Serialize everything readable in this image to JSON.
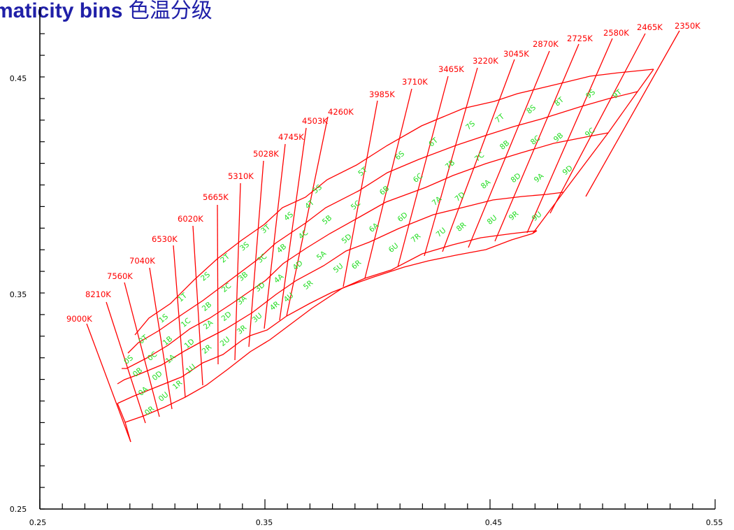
{
  "title": {
    "main": "maticity bins",
    "cjk": "色温分级"
  },
  "colors": {
    "grid": "#ff0000",
    "cct": "#ff0000",
    "bins": "#22dd22",
    "title": "#2020a8",
    "axis": "#000000"
  },
  "axes": {
    "x_ticks": [
      "0.25",
      "0.35",
      "0.45",
      "0.55"
    ],
    "y_ticks": [
      "0.45",
      "0.35",
      "0.25"
    ]
  },
  "cct_labels": [
    "9000K",
    "8210K",
    "7560K",
    "7040K",
    "6530K",
    "6020K",
    "5665K",
    "5310K",
    "5028K",
    "4745K",
    "4503K",
    "4260K",
    "3985K",
    "3710K",
    "3465K",
    "3220K",
    "3045K",
    "2870K",
    "2725K",
    "2580K",
    "2465K",
    "2350K"
  ],
  "bin_labels": [
    "0S",
    "0T",
    "0B",
    "0C",
    "0A",
    "0D",
    "0R",
    "0U",
    "1S",
    "1T",
    "1B",
    "1C",
    "1A",
    "1D",
    "1R",
    "1U",
    "2S",
    "2T",
    "2B",
    "2C",
    "2A",
    "2D",
    "2R",
    "2U",
    "3S",
    "3T",
    "3B",
    "3C",
    "3A",
    "3D",
    "3R",
    "3U",
    "4S",
    "4T",
    "4B",
    "4C",
    "4A",
    "4D",
    "4R",
    "4U",
    "5S",
    "5T",
    "5B",
    "5C",
    "5A",
    "5D",
    "5R",
    "5U",
    "6S",
    "6T",
    "6B",
    "6C",
    "6A",
    "6D",
    "6R",
    "6U",
    "7S",
    "7T",
    "7B",
    "7C",
    "7A",
    "7D",
    "7R",
    "7U",
    "8S",
    "8T",
    "8B",
    "8C",
    "8A",
    "8D",
    "8R",
    "8U",
    "9S",
    "9T",
    "9B",
    "9C",
    "9A",
    "9D",
    "9R",
    "9U"
  ]
}
